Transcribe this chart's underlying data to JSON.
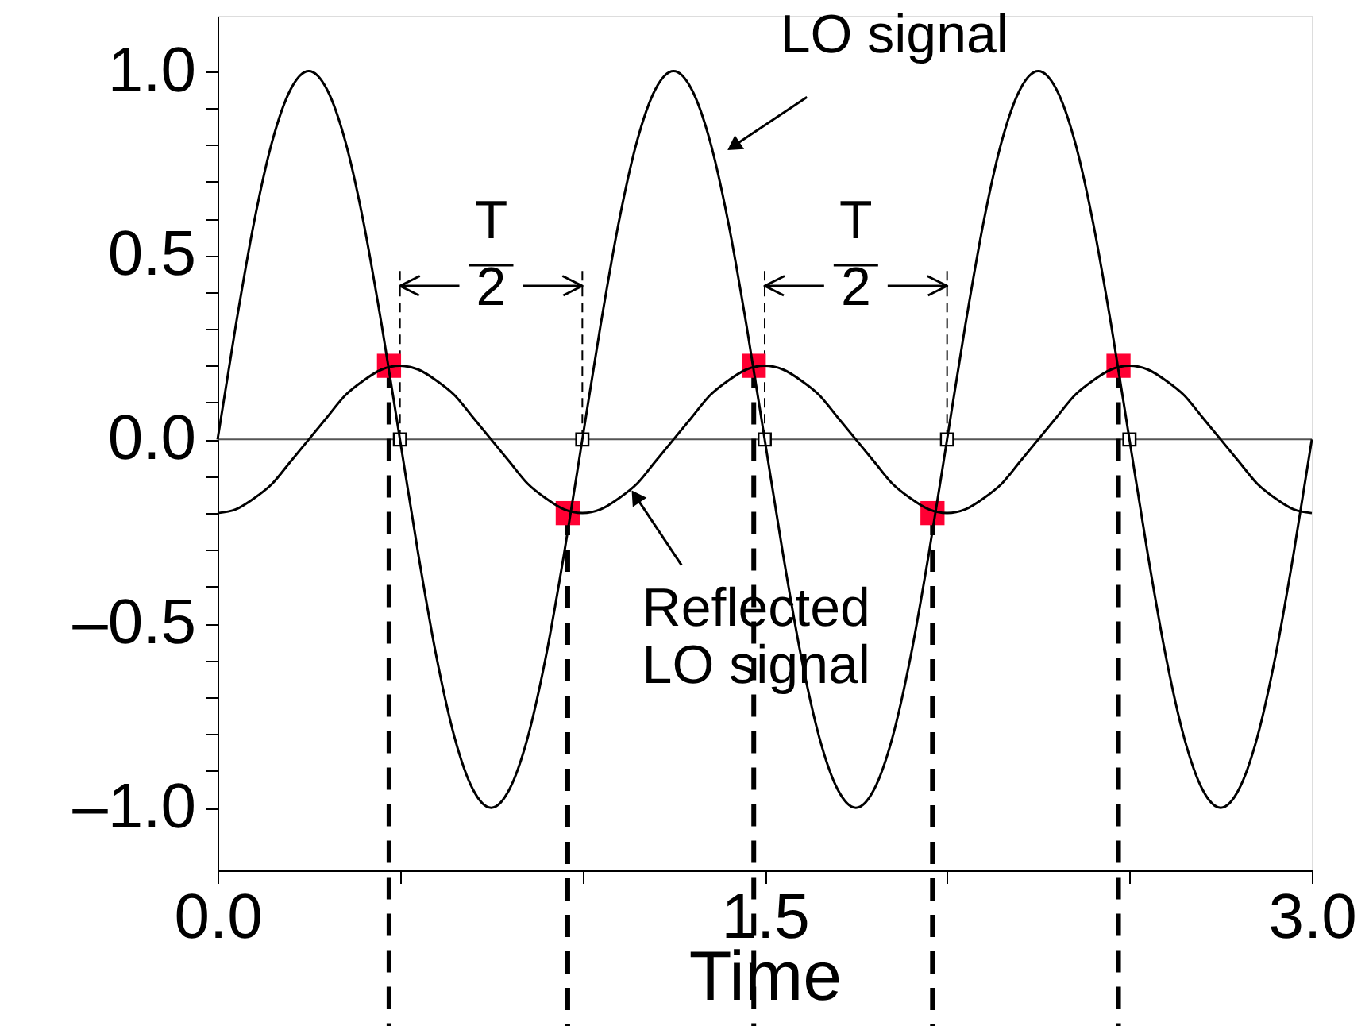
{
  "chart_data": {
    "type": "line",
    "xlabel": "Time",
    "xlim": [
      0,
      3
    ],
    "ylim": [
      -1.17,
      1.15
    ],
    "xticks": [
      {
        "value": 0,
        "label": "0.0"
      },
      {
        "value": 0.5,
        "label": null
      },
      {
        "value": 1,
        "label": null
      },
      {
        "value": 1.5,
        "label": "1.5"
      },
      {
        "value": 2,
        "label": null
      },
      {
        "value": 2.5,
        "label": null
      },
      {
        "value": 3,
        "label": "3.0"
      }
    ],
    "yticks": [
      {
        "value": -1.0,
        "label": "–1.0"
      },
      {
        "value": -0.9,
        "label": null
      },
      {
        "value": -0.8,
        "label": null
      },
      {
        "value": -0.7,
        "label": null
      },
      {
        "value": -0.6,
        "label": null
      },
      {
        "value": -0.5,
        "label": "–0.5"
      },
      {
        "value": -0.4,
        "label": null
      },
      {
        "value": -0.3,
        "label": null
      },
      {
        "value": -0.2,
        "label": null
      },
      {
        "value": -0.1,
        "label": null
      },
      {
        "value": 0,
        "label": "0.0"
      },
      {
        "value": 0.1,
        "label": null
      },
      {
        "value": 0.2,
        "label": null
      },
      {
        "value": 0.3,
        "label": null
      },
      {
        "value": 0.4,
        "label": null
      },
      {
        "value": 0.5,
        "label": "0.5"
      },
      {
        "value": 0.6,
        "label": null
      },
      {
        "value": 0.7,
        "label": null
      },
      {
        "value": 0.8,
        "label": null
      },
      {
        "value": 0.9,
        "label": null
      },
      {
        "value": 1.0,
        "label": "1.0"
      }
    ],
    "grid": false,
    "x": [
      0,
      0.05,
      0.1,
      0.15,
      0.2,
      0.25,
      0.3,
      0.35,
      0.4,
      0.45,
      0.5,
      0.55,
      0.6,
      0.65,
      0.7,
      0.75,
      0.8,
      0.85,
      0.9,
      0.95,
      1,
      1.05,
      1.1,
      1.15,
      1.2,
      1.25,
      1.3,
      1.35,
      1.4,
      1.45,
      1.5,
      1.55,
      1.6,
      1.65,
      1.7,
      1.75,
      1.8,
      1.85,
      1.9,
      1.95,
      2,
      2.05,
      2.1,
      2.15,
      2.2,
      2.25,
      2.3,
      2.35,
      2.4,
      2.45,
      2.5,
      2.55,
      2.6,
      2.65,
      2.7,
      2.75,
      2.8,
      2.85,
      2.9,
      2.95,
      3
    ],
    "series": [
      {
        "color": "#000000",
        "values": [
          0,
          0.31,
          0.59,
          0.81,
          0.95,
          1,
          0.95,
          0.81,
          0.59,
          0.31,
          0,
          -0.31,
          -0.59,
          -0.81,
          -0.95,
          -1,
          -0.95,
          -0.81,
          -0.59,
          -0.31,
          0,
          0.31,
          0.59,
          0.81,
          0.95,
          1,
          0.95,
          0.81,
          0.59,
          0.31,
          0,
          -0.31,
          -0.59,
          -0.81,
          -0.95,
          -1,
          -0.95,
          -0.81,
          -0.59,
          -0.31,
          0,
          0.31,
          0.59,
          0.81,
          0.95,
          1,
          0.95,
          0.81,
          0.59,
          0.31,
          0,
          -0.31,
          -0.59,
          -0.81,
          -0.95,
          -1,
          -0.95,
          -0.81,
          -0.59,
          -0.31,
          0
        ]
      },
      {
        "color": "#000000",
        "values": [
          -0.2,
          -0.19,
          -0.16,
          -0.12,
          -0.06,
          0,
          0.06,
          0.12,
          0.16,
          0.19,
          0.2,
          0.19,
          0.16,
          0.12,
          0.06,
          0,
          -0.06,
          -0.12,
          -0.16,
          -0.19,
          -0.2,
          -0.19,
          -0.16,
          -0.12,
          -0.06,
          0,
          0.06,
          0.12,
          0.16,
          0.19,
          0.2,
          0.19,
          0.16,
          0.12,
          0.06,
          0,
          -0.06,
          -0.12,
          -0.16,
          -0.19,
          -0.2,
          -0.19,
          -0.16,
          -0.12,
          -0.06,
          0,
          0.06,
          0.12,
          0.16,
          0.19,
          0.2,
          0.19,
          0.16,
          0.12,
          0.06,
          0,
          -0.06,
          -0.12,
          -0.16,
          -0.19,
          -0.2
        ]
      },
      {
        "type": "scatter",
        "color": "#ff0033",
        "marker": "square",
        "x": [
          0.47,
          0.96,
          1.47,
          1.96,
          2.47
        ],
        "values": [
          0.2,
          -0.2,
          0.2,
          -0.2,
          0.2
        ]
      },
      {
        "type": "scatter",
        "color": "#ffffff",
        "marker": "square",
        "x": [
          0.5,
          1,
          1.5,
          2,
          2.5
        ],
        "values": [
          0,
          0,
          0,
          0,
          0
        ]
      }
    ],
    "ref_lines": [
      {
        "axis": "y",
        "value": 0,
        "color": "#555555",
        "line_style": "solid"
      },
      {
        "axis": "x",
        "value": 0.47,
        "color": "#000000",
        "line_style": "dashed"
      },
      {
        "axis": "x",
        "value": 0.5,
        "color": "#000000",
        "line_style": "dashed"
      },
      {
        "axis": "x",
        "value": 0.96,
        "color": "#000000",
        "line_style": "dashed"
      },
      {
        "axis": "x",
        "value": 1,
        "color": "#000000",
        "line_style": "dashed"
      },
      {
        "axis": "x",
        "value": 1.47,
        "color": "#000000",
        "line_style": "dashed"
      },
      {
        "axis": "x",
        "value": 1.5,
        "color": "#000000",
        "line_style": "dashed"
      },
      {
        "axis": "x",
        "value": 1.96,
        "color": "#000000",
        "line_style": "dashed"
      },
      {
        "axis": "x",
        "value": 2,
        "color": "#000000",
        "line_style": "dashed"
      },
      {
        "axis": "x",
        "value": 2.47,
        "color": "#000000",
        "line_style": "dashed"
      }
    ],
    "annotations": [
      {
        "text": "LO signal",
        "x": 1.42,
        "y": 0.8
      },
      {
        "text": "Reflected\nLO signal",
        "x": 1.15,
        "y": -0.16
      },
      "T\n2",
      "T\n2"
    ]
  }
}
